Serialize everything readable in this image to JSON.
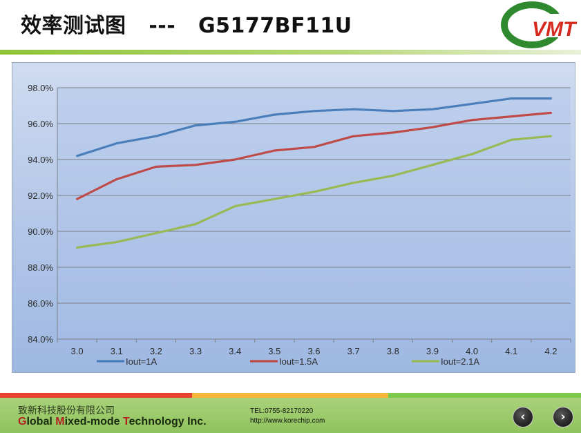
{
  "slide": {
    "title": "效率测试图   ---   G5177BF11U"
  },
  "logo": {
    "text": "VMT",
    "colors": {
      "ring": "#2f8a2f",
      "text": "#d62a1e"
    }
  },
  "chart_data": {
    "type": "line",
    "x": [
      3.0,
      3.1,
      3.2,
      3.3,
      3.4,
      3.5,
      3.6,
      3.7,
      3.8,
      3.9,
      4.0,
      4.1,
      4.2
    ],
    "x_tick_labels": [
      "3.0",
      "3.1",
      "3.2",
      "3.3",
      "3.4",
      "3.5",
      "3.6",
      "3.7",
      "3.8",
      "3.9",
      "4.0",
      "4.1",
      "4.2"
    ],
    "y_tick_labels": [
      "98.0%",
      "96.0%",
      "94.0%",
      "92.0%",
      "90.0%",
      "88.0%",
      "86.0%",
      "84.0%"
    ],
    "ylim": [
      84.0,
      98.0
    ],
    "y_ticks": [
      98.0,
      96.0,
      94.0,
      92.0,
      90.0,
      88.0,
      86.0,
      84.0
    ],
    "grid": true,
    "legend_position": "bottom",
    "series": [
      {
        "name": "Iout=1A",
        "color": "#4a7ebb",
        "values": [
          94.2,
          94.9,
          95.3,
          95.9,
          96.1,
          96.5,
          96.7,
          96.8,
          96.7,
          96.8,
          97.1,
          97.4,
          97.4
        ]
      },
      {
        "name": "Iout=1.5A",
        "color": "#be4b48",
        "values": [
          91.8,
          92.9,
          93.6,
          93.7,
          94.0,
          94.5,
          94.7,
          95.3,
          95.5,
          95.8,
          96.2,
          96.4,
          96.6
        ]
      },
      {
        "name": "Iout=2.1A",
        "color": "#98b954",
        "values": [
          89.1,
          89.4,
          89.9,
          90.4,
          91.4,
          91.8,
          92.2,
          92.7,
          93.1,
          93.7,
          94.3,
          95.1,
          95.3
        ]
      }
    ]
  },
  "footer": {
    "company_cn": "致新科技股份有限公司",
    "company_en": {
      "g": "G",
      "g_rest": "lobal ",
      "m": "M",
      "m_rest": "ixed-mode ",
      "t": "T",
      "t_rest": "echnology Inc."
    },
    "tel": "TEL:0755-82170220",
    "web": "http://www.korechip.com",
    "stripe_colors": [
      "#e8432e",
      "#f5b63a",
      "#7ec84a"
    ]
  },
  "nav": {
    "prev_icon": "chevron-left-icon",
    "next_icon": "chevron-right-icon",
    "prev_glyph": "‹",
    "next_glyph": "›"
  }
}
